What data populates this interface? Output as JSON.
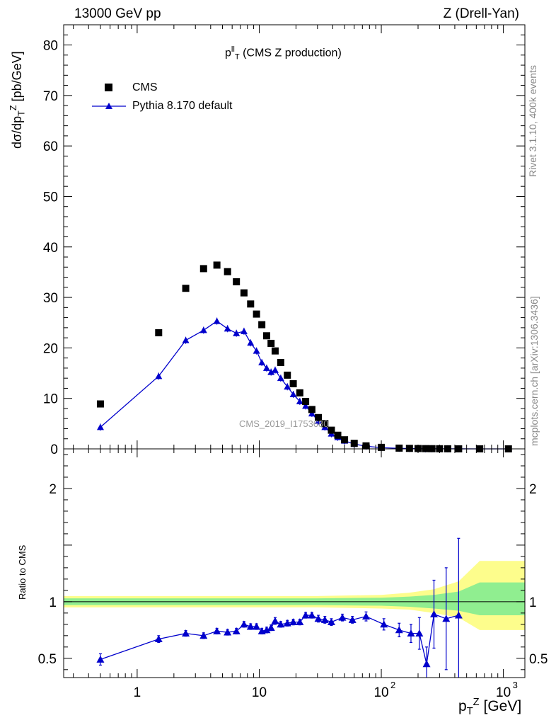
{
  "header": {
    "left": "13000 GeV pp",
    "right": "Z (Drell-Yan)"
  },
  "side_labels": {
    "top": "Rivet 3.1.10,  400k events",
    "bottom": "mcplots.cern.ch [arXiv:1306.3436]"
  },
  "watermark": "CMS_2019_I1753680",
  "chart_data": [
    {
      "type": "scatter",
      "title": {
        "main": "p",
        "sup": "ll",
        "sub": "T",
        "rest": " (CMS Z production)"
      },
      "ylabel": {
        "pre": "dσ/dp",
        "sub": "T",
        "sup": "Z",
        "post": " [pb/GeV]"
      },
      "xlabel": {
        "pre": "p",
        "sub": "T",
        "sup": "Z",
        "post": " [GeV]"
      },
      "xscale": "log",
      "xlim": [
        0.25,
        1500
      ],
      "ylim": [
        0,
        84
      ],
      "yticks": [
        0,
        10,
        20,
        30,
        40,
        50,
        60,
        70,
        80
      ],
      "xticks": [
        {
          "v": 1,
          "label": "1"
        },
        {
          "v": 10,
          "label": "10"
        },
        {
          "v": 100,
          "label": "10",
          "exp": "2"
        },
        {
          "v": 1000,
          "label": "10",
          "exp": "3"
        }
      ],
      "legend_position": "top-left",
      "series": [
        {
          "name": "CMS",
          "color": "#000000",
          "marker": "square",
          "x": [
            0.5,
            1.5,
            2.5,
            3.5,
            4.5,
            5.5,
            6.5,
            7.5,
            8.5,
            9.5,
            10.5,
            11.5,
            12.5,
            13.5,
            15,
            17,
            19,
            21.5,
            24,
            27,
            30.5,
            34.5,
            39,
            44,
            50,
            60,
            75,
            100,
            140,
            170,
            200,
            230,
            260,
            300,
            350,
            430,
            640,
            1100
          ],
          "y": [
            8.9,
            23.0,
            31.8,
            35.7,
            36.4,
            35.1,
            33.1,
            30.9,
            28.7,
            26.7,
            24.6,
            22.4,
            20.9,
            19.4,
            17.1,
            14.6,
            12.9,
            11.1,
            9.4,
            7.8,
            6.2,
            5.0,
            3.7,
            2.7,
            1.8,
            1.1,
            0.6,
            0.3,
            0.15,
            0.1,
            0.07,
            0.05,
            0.04,
            0.03,
            0.02,
            0.01,
            0.005,
            0.001
          ]
        },
        {
          "name": "Pythia 8.170 default",
          "color": "#0000cc",
          "marker": "triangle",
          "x": [
            0.5,
            1.5,
            2.5,
            3.5,
            4.5,
            5.5,
            6.5,
            7.5,
            8.5,
            9.5,
            10.5,
            11.5,
            12.5,
            13.5,
            15,
            17,
            19,
            21.5,
            24,
            27,
            30.5,
            34.5,
            39,
            44,
            50,
            60,
            75,
            100,
            140,
            170,
            200,
            230,
            260,
            300,
            350,
            430,
            640,
            1100
          ],
          "y": [
            4.3,
            14.4,
            21.5,
            23.5,
            25.3,
            23.8,
            22.9,
            23.3,
            21.0,
            19.4,
            17.1,
            16.0,
            15.2,
            15.6,
            14.0,
            12.3,
            10.8,
            9.4,
            8.5,
            7.0,
            5.5,
            4.3,
            3.0,
            2.3,
            1.6,
            0.95,
            0.53,
            0.24,
            0.11,
            0.07,
            0.05,
            0.02,
            0.03,
            0.02,
            0.015,
            0.008,
            0.004,
            0.001
          ]
        }
      ]
    },
    {
      "type": "line",
      "ylabel": "Ratio to CMS",
      "xscale": "log",
      "xlim": [
        0.25,
        1500
      ],
      "ylim": [
        0.33,
        2.35
      ],
      "ytick_labels": [
        {
          "v": 0.5,
          "label": "0.5"
        },
        {
          "v": 1,
          "label": "1"
        },
        {
          "v": 2,
          "label": "2"
        }
      ],
      "bands": {
        "x_edges": [
          0.25,
          30,
          100,
          170,
          270,
          430,
          640,
          1500
        ],
        "yellow_lo": [
          0.95,
          0.95,
          0.94,
          0.93,
          0.9,
          0.86,
          0.75,
          0.75
        ],
        "yellow_hi": [
          1.05,
          1.05,
          1.06,
          1.08,
          1.11,
          1.18,
          1.36,
          1.36
        ],
        "green_lo": [
          0.97,
          0.97,
          0.965,
          0.955,
          0.94,
          0.92,
          0.88,
          0.88
        ],
        "green_hi": [
          1.03,
          1.03,
          1.035,
          1.045,
          1.06,
          1.09,
          1.17,
          1.17
        ]
      },
      "series": [
        {
          "name": "Pythia 8.170 default",
          "color": "#0000cc",
          "x": [
            0.5,
            1.5,
            2.5,
            3.5,
            4.5,
            5.5,
            6.5,
            7.5,
            8.5,
            9.5,
            10.5,
            11.5,
            12.5,
            13.5,
            15,
            17,
            19,
            21.5,
            24,
            27,
            30.5,
            34.5,
            39,
            48,
            58,
            75,
            105,
            140,
            175,
            205,
            235,
            270,
            340,
            430
          ],
          "y": [
            0.49,
            0.67,
            0.72,
            0.7,
            0.74,
            0.73,
            0.74,
            0.8,
            0.78,
            0.78,
            0.74,
            0.75,
            0.77,
            0.83,
            0.8,
            0.81,
            0.82,
            0.82,
            0.88,
            0.88,
            0.85,
            0.84,
            0.82,
            0.86,
            0.84,
            0.87,
            0.8,
            0.75,
            0.72,
            0.72,
            0.45,
            0.89,
            0.85,
            0.88
          ],
          "err": [
            0.05,
            0.03,
            0.025,
            0.025,
            0.025,
            0.025,
            0.025,
            0.025,
            0.025,
            0.025,
            0.025,
            0.025,
            0.025,
            0.03,
            0.025,
            0.025,
            0.025,
            0.025,
            0.025,
            0.025,
            0.03,
            0.03,
            0.03,
            0.03,
            0.03,
            0.04,
            0.05,
            0.06,
            0.08,
            0.14,
            0.15,
            0.3,
            0.45,
            0.68
          ]
        }
      ]
    }
  ]
}
